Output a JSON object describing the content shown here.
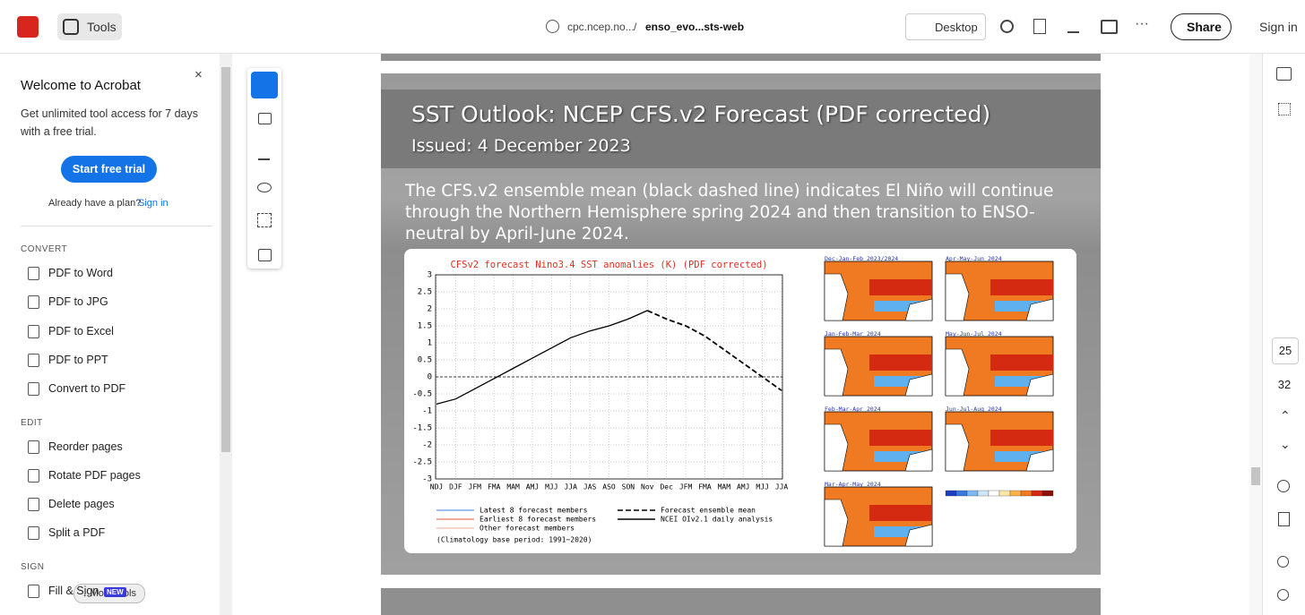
{
  "topbar": {
    "tools": "Tools",
    "url": "cpc.ncep.no...",
    "separator": "/",
    "filename": "enso_evo...sts-web",
    "desktop": "Desktop",
    "share": "Share",
    "sign_in": "Sign in"
  },
  "sidebar": {
    "title": "Welcome to Acrobat",
    "description": "Get unlimited tool access for 7 days with a free trial.",
    "button": "Start free trial",
    "plan_text": "Already have a plan?",
    "plan_link": "Sign in",
    "sections": [
      {
        "heading": "CONVERT",
        "items": [
          "PDF to Word",
          "PDF to JPG",
          "PDF to Excel",
          "PDF to PPT",
          "Convert to PDF"
        ]
      },
      {
        "heading": "EDIT",
        "items": [
          "Reorder pages",
          "Rotate PDF pages",
          "Delete pages",
          "Split a PDF"
        ]
      },
      {
        "heading": "SIGN",
        "items": [
          "Fill & Sign"
        ]
      }
    ],
    "badge": "NEW",
    "more_tools": "More tools"
  },
  "page_nav": {
    "current": "25",
    "total": "32"
  },
  "slide": {
    "title": "SST Outlook: NCEP CFS.v2 Forecast (PDF corrected)",
    "issued": "Issued: 4 December 2023",
    "text": "The CFS.v2 ensemble mean (black dashed line) indicates El Niño will continue through the Northern Hemisphere spring 2024 and then transition to ENSO-neutral by April-June 2024.",
    "chart": {
      "type": "line",
      "title": "CFSv2 forecast Nino3.4 SST anomalies (K) (PDF corrected)",
      "categories": [
        "NDJ",
        "DJF",
        "JFM",
        "FMA",
        "MAM",
        "AMJ",
        "MJJ",
        "JJA",
        "JAS",
        "ASO",
        "SON",
        "Nov",
        "Dec",
        "JFM",
        "FMA",
        "MAM",
        "AMJ",
        "MJJ",
        "JJA"
      ],
      "ylim": [
        -3,
        3
      ],
      "yticks": [
        3,
        2.5,
        2,
        1.5,
        1,
        0.5,
        0,
        -0.5,
        -1,
        -1.5,
        -2,
        -2.5,
        -3
      ],
      "series": [
        {
          "name": "NCEI OIv2.1 daily analysis",
          "color": "#000000",
          "values": [
            -0.8,
            -0.65,
            -0.35,
            -0.05,
            0.25,
            0.55,
            0.85,
            1.15,
            1.35,
            1.5,
            1.7,
            1.95,
            null,
            null,
            null,
            null,
            null,
            null,
            null
          ]
        },
        {
          "name": "Forecast ensemble mean",
          "color": "#000000",
          "values": [
            null,
            null,
            null,
            null,
            null,
            null,
            null,
            null,
            null,
            null,
            null,
            1.95,
            1.7,
            1.5,
            1.2,
            0.8,
            0.4,
            0.0,
            -0.4
          ]
        }
      ],
      "member_legend": [
        {
          "name": "Latest 8 forecast members",
          "color": "#3b7fd9"
        },
        {
          "name": "Earliest 8 forecast members",
          "color": "#e8553a"
        },
        {
          "name": "Other forecast members",
          "color": "#f2a98e"
        }
      ],
      "footnote": "(Climatology base period: 1991−2020)",
      "maps": [
        "Dec-Jan-Feb 2023/2024",
        "Jan-Feb-Mar 2024",
        "Feb-Mar-Apr 2024",
        "Mar-Apr-May 2024",
        "Apr-May-Jun 2024",
        "May-Jun-Jul 2024",
        "Jun-Jul-Aug 2024"
      ]
    }
  }
}
